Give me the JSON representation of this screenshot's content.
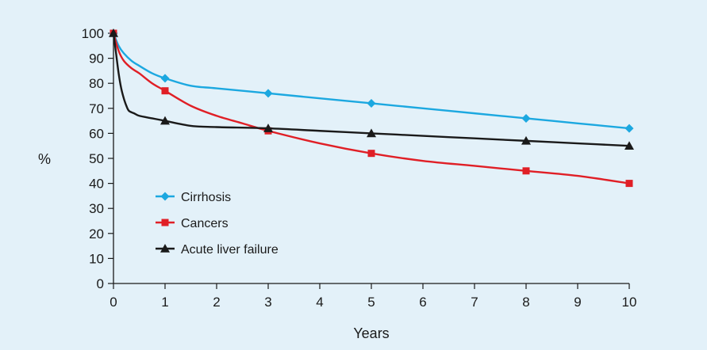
{
  "chart_data": {
    "type": "line",
    "title": "",
    "xlabel": "Years",
    "ylabel": "%",
    "xlim": [
      0,
      10
    ],
    "ylim": [
      0,
      100
    ],
    "x_ticks": [
      0,
      1,
      2,
      3,
      4,
      5,
      6,
      7,
      8,
      9,
      10
    ],
    "y_ticks": [
      0,
      10,
      20,
      30,
      40,
      50,
      60,
      70,
      80,
      90,
      100
    ],
    "grid": false,
    "legend_position": "left",
    "series": [
      {
        "name": "Cirrhosis",
        "color": "#1ca8e0",
        "marker": "diamond",
        "marker_x": [
          0,
          1,
          3,
          5,
          8,
          10
        ],
        "marker_y": [
          100,
          82,
          76,
          72,
          66,
          62
        ],
        "x": [
          0,
          0.1,
          0.2,
          0.35,
          0.5,
          0.75,
          1,
          1.5,
          2,
          3,
          4,
          5,
          6,
          7,
          8,
          9,
          10
        ],
        "y": [
          100,
          95,
          92,
          89,
          87,
          84,
          82,
          79,
          78,
          76,
          74,
          72,
          70,
          68,
          66,
          64,
          62
        ]
      },
      {
        "name": "Cancers",
        "color": "#e01f26",
        "marker": "square",
        "marker_x": [
          0,
          1,
          3,
          5,
          8,
          10
        ],
        "marker_y": [
          100,
          77,
          61,
          52,
          45,
          40
        ],
        "x": [
          0,
          0.1,
          0.2,
          0.35,
          0.5,
          0.75,
          1,
          1.5,
          2,
          2.5,
          3,
          4,
          5,
          6,
          7,
          8,
          9,
          10
        ],
        "y": [
          100,
          93,
          89,
          86,
          84,
          80,
          77,
          71,
          67,
          64,
          61,
          56,
          52,
          49,
          47,
          45,
          43,
          40
        ]
      },
      {
        "name": "Acute liver failure",
        "color": "#1a1a1a",
        "marker": "triangle",
        "marker_x": [
          0,
          1,
          3,
          5,
          8,
          10
        ],
        "marker_y": [
          100,
          65,
          62,
          60,
          57,
          55
        ],
        "x": [
          0,
          0.05,
          0.1,
          0.15,
          0.2,
          0.25,
          0.3,
          0.4,
          0.5,
          0.75,
          1,
          1.5,
          2,
          3,
          4,
          5,
          6,
          7,
          8,
          9,
          10
        ],
        "y": [
          100,
          92,
          84,
          78,
          74,
          71,
          69,
          68,
          67,
          66,
          65,
          63,
          62.5,
          62,
          61,
          60,
          59,
          58,
          57,
          56,
          55
        ]
      }
    ]
  }
}
